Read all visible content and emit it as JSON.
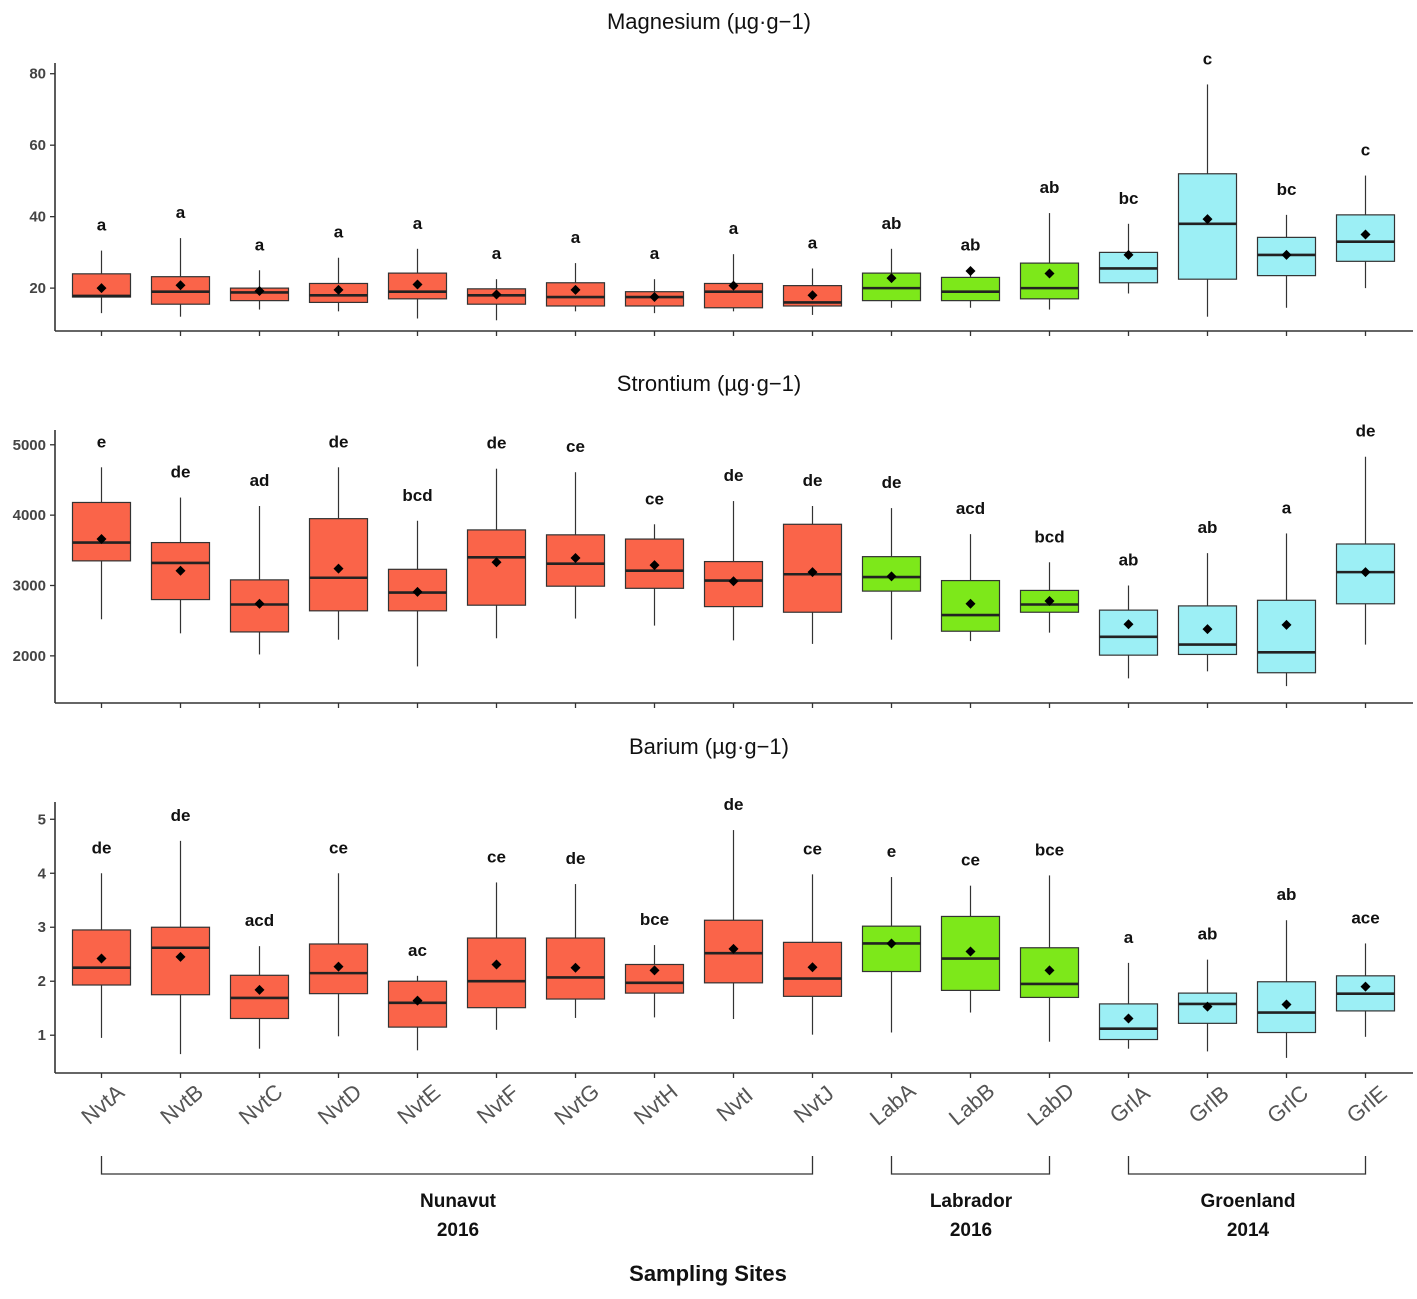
{
  "figure": {
    "xlabel": "Sampling Sites",
    "groups": [
      {
        "name": "Nunavut",
        "year": "2016",
        "from": 0,
        "to": 9
      },
      {
        "name": "Labrador",
        "year": "2016",
        "from": 10,
        "to": 12
      },
      {
        "name": "Groenland",
        "year": "2014",
        "from": 13,
        "to": 16
      }
    ]
  },
  "chart_data": [
    {
      "type": "boxplot",
      "title": "Magnesium  (µg·g−1)",
      "categories": [
        "NvtA",
        "NvtB",
        "NvtC",
        "NvtD",
        "NvtE",
        "NvtF",
        "NvtG",
        "NvtH",
        "NvtI",
        "NvtJ",
        "LabA",
        "LabB",
        "LabD",
        "GrlA",
        "GrlB",
        "GrlC",
        "GrlE"
      ],
      "colors": [
        "#fa6449",
        "#fa6449",
        "#fa6449",
        "#fa6449",
        "#fa6449",
        "#fa6449",
        "#fa6449",
        "#fa6449",
        "#fa6449",
        "#fa6449",
        "#7de81a",
        "#7de81a",
        "#7de81a",
        "#9ceff5",
        "#9ceff5",
        "#9ceff5",
        "#9ceff5"
      ],
      "ylim": [
        8,
        83
      ],
      "yticks": [
        "20",
        "40",
        "60",
        "80"
      ],
      "series": [
        {
          "name": "NvtA",
          "min": 13,
          "q1": 17.5,
          "median": 17.8,
          "q3": 24,
          "max": 30.5,
          "mean": 20,
          "letter": "a"
        },
        {
          "name": "NvtB",
          "min": 12,
          "q1": 15.5,
          "median": 19,
          "q3": 23.2,
          "max": 34,
          "mean": 20.8,
          "letter": "a"
        },
        {
          "name": "NvtC",
          "min": 14,
          "q1": 16.5,
          "median": 18.8,
          "q3": 20,
          "max": 25,
          "mean": 19.2,
          "letter": "a"
        },
        {
          "name": "NvtD",
          "min": 13.5,
          "q1": 16,
          "median": 18,
          "q3": 21.3,
          "max": 28.5,
          "mean": 19.5,
          "letter": "a"
        },
        {
          "name": "NvtE",
          "min": 11.5,
          "q1": 17,
          "median": 19,
          "q3": 24.2,
          "max": 31,
          "mean": 21,
          "letter": "a"
        },
        {
          "name": "NvtF",
          "min": 11,
          "q1": 15.5,
          "median": 18,
          "q3": 19.8,
          "max": 22.5,
          "mean": 18.2,
          "letter": "a"
        },
        {
          "name": "NvtG",
          "min": 13.5,
          "q1": 15,
          "median": 17.5,
          "q3": 21.5,
          "max": 27,
          "mean": 19.5,
          "letter": "a"
        },
        {
          "name": "NvtH",
          "min": 13,
          "q1": 15,
          "median": 17.5,
          "q3": 19,
          "max": 22.5,
          "mean": 17.5,
          "letter": "a"
        },
        {
          "name": "NvtI",
          "min": 13.5,
          "q1": 14.5,
          "median": 19,
          "q3": 21.3,
          "max": 29.5,
          "mean": 20.7,
          "letter": "a"
        },
        {
          "name": "NvtJ",
          "min": 12.5,
          "q1": 15,
          "median": 16,
          "q3": 20.7,
          "max": 25.5,
          "mean": 18,
          "letter": "a"
        },
        {
          "name": "LabA",
          "min": 14.5,
          "q1": 16.5,
          "median": 20,
          "q3": 24.2,
          "max": 31,
          "mean": 22.8,
          "letter": "ab"
        },
        {
          "name": "LabB",
          "min": 14.5,
          "q1": 16.5,
          "median": 19,
          "q3": 23,
          "max": 25,
          "mean": 24.8,
          "letter": "ab"
        },
        {
          "name": "LabD",
          "min": 14,
          "q1": 17,
          "median": 20,
          "q3": 27,
          "max": 41,
          "mean": 24.1,
          "letter": "ab"
        },
        {
          "name": "GrlA",
          "min": 18.5,
          "q1": 21.5,
          "median": 25.5,
          "q3": 30,
          "max": 38,
          "mean": 29.3,
          "letter": "bc"
        },
        {
          "name": "GrlB",
          "min": 12,
          "q1": 22.5,
          "median": 38,
          "q3": 52,
          "max": 77,
          "mean": 39.3,
          "letter": "c"
        },
        {
          "name": "GrlC",
          "min": 14.5,
          "q1": 23.5,
          "median": 29.3,
          "q3": 34.2,
          "max": 40.5,
          "mean": 29.3,
          "letter": "bc"
        },
        {
          "name": "GrlE",
          "min": 20,
          "q1": 27.5,
          "median": 33,
          "q3": 40.5,
          "max": 51.5,
          "mean": 35,
          "letter": "c"
        }
      ]
    },
    {
      "type": "boxplot",
      "title": "Strontium  (µg·g−1)",
      "categories": [
        "NvtA",
        "NvtB",
        "NvtC",
        "NvtD",
        "NvtE",
        "NvtF",
        "NvtG",
        "NvtH",
        "NvtI",
        "NvtJ",
        "LabA",
        "LabB",
        "LabD",
        "GrlA",
        "GrlB",
        "GrlC",
        "GrlE"
      ],
      "colors": [
        "#fa6449",
        "#fa6449",
        "#fa6449",
        "#fa6449",
        "#fa6449",
        "#fa6449",
        "#fa6449",
        "#fa6449",
        "#fa6449",
        "#fa6449",
        "#7de81a",
        "#7de81a",
        "#7de81a",
        "#9ceff5",
        "#9ceff5",
        "#9ceff5",
        "#9ceff5"
      ],
      "ylim": [
        1330,
        5210
      ],
      "yticks": [
        "2000",
        "3000",
        "4000",
        "5000"
      ],
      "series": [
        {
          "name": "NvtA",
          "min": 2520,
          "q1": 3350,
          "median": 3610,
          "q3": 4180,
          "max": 4680,
          "mean": 3660,
          "letter": "e"
        },
        {
          "name": "NvtB",
          "min": 2320,
          "q1": 2800,
          "median": 3320,
          "q3": 3610,
          "max": 4250,
          "mean": 3210,
          "letter": "de"
        },
        {
          "name": "NvtC",
          "min": 2020,
          "q1": 2340,
          "median": 2730,
          "q3": 3080,
          "max": 4130,
          "mean": 2740,
          "letter": "ad"
        },
        {
          "name": "NvtD",
          "min": 2230,
          "q1": 2640,
          "median": 3110,
          "q3": 3950,
          "max": 4680,
          "mean": 3240,
          "letter": "de"
        },
        {
          "name": "NvtE",
          "min": 1850,
          "q1": 2640,
          "median": 2900,
          "q3": 3230,
          "max": 3920,
          "mean": 2910,
          "letter": "bcd"
        },
        {
          "name": "NvtF",
          "min": 2250,
          "q1": 2720,
          "median": 3400,
          "q3": 3790,
          "max": 4660,
          "mean": 3330,
          "letter": "de"
        },
        {
          "name": "NvtG",
          "min": 2530,
          "q1": 2990,
          "median": 3310,
          "q3": 3720,
          "max": 4610,
          "mean": 3390,
          "letter": "ce"
        },
        {
          "name": "NvtH",
          "min": 2430,
          "q1": 2960,
          "median": 3210,
          "q3": 3660,
          "max": 3870,
          "mean": 3290,
          "letter": "ce"
        },
        {
          "name": "NvtI",
          "min": 2220,
          "q1": 2700,
          "median": 3070,
          "q3": 3340,
          "max": 4200,
          "mean": 3060,
          "letter": "de"
        },
        {
          "name": "NvtJ",
          "min": 2170,
          "q1": 2620,
          "median": 3160,
          "q3": 3870,
          "max": 4130,
          "mean": 3190,
          "letter": "de"
        },
        {
          "name": "LabA",
          "min": 2230,
          "q1": 2920,
          "median": 3120,
          "q3": 3410,
          "max": 4100,
          "mean": 3130,
          "letter": "de"
        },
        {
          "name": "LabB",
          "min": 2210,
          "q1": 2350,
          "median": 2580,
          "q3": 3070,
          "max": 3730,
          "mean": 2740,
          "letter": "acd"
        },
        {
          "name": "LabD",
          "min": 2330,
          "q1": 2620,
          "median": 2730,
          "q3": 2930,
          "max": 3330,
          "mean": 2780,
          "letter": "bcd"
        },
        {
          "name": "GrlA",
          "min": 1680,
          "q1": 2010,
          "median": 2270,
          "q3": 2650,
          "max": 3000,
          "mean": 2450,
          "letter": "ab"
        },
        {
          "name": "GrlB",
          "min": 1780,
          "q1": 2020,
          "median": 2160,
          "q3": 2710,
          "max": 3460,
          "mean": 2380,
          "letter": "ab"
        },
        {
          "name": "GrlC",
          "min": 1570,
          "q1": 1760,
          "median": 2050,
          "q3": 2790,
          "max": 3740,
          "mean": 2440,
          "letter": "a"
        },
        {
          "name": "GrlE",
          "min": 2160,
          "q1": 2740,
          "median": 3190,
          "q3": 3590,
          "max": 4830,
          "mean": 3190,
          "letter": "de"
        }
      ]
    },
    {
      "type": "boxplot",
      "title": "Barium  (µg·g−1)",
      "categories": [
        "NvtA",
        "NvtB",
        "NvtC",
        "NvtD",
        "NvtE",
        "NvtF",
        "NvtG",
        "NvtH",
        "NvtI",
        "NvtJ",
        "LabA",
        "LabB",
        "LabD",
        "GrlA",
        "GrlB",
        "GrlC",
        "GrlE"
      ],
      "colors": [
        "#fa6449",
        "#fa6449",
        "#fa6449",
        "#fa6449",
        "#fa6449",
        "#fa6449",
        "#fa6449",
        "#fa6449",
        "#fa6449",
        "#fa6449",
        "#7de81a",
        "#7de81a",
        "#7de81a",
        "#9ceff5",
        "#9ceff5",
        "#9ceff5",
        "#9ceff5"
      ],
      "ylim": [
        0.3,
        5.32
      ],
      "yticks": [
        "1",
        "2",
        "3",
        "4",
        "5"
      ],
      "series": [
        {
          "name": "NvtA",
          "min": 0.95,
          "q1": 1.93,
          "median": 2.25,
          "q3": 2.95,
          "max": 4.0,
          "mean": 2.42,
          "letter": "de"
        },
        {
          "name": "NvtB",
          "min": 0.65,
          "q1": 1.75,
          "median": 2.62,
          "q3": 3.0,
          "max": 4.6,
          "mean": 2.45,
          "letter": "de"
        },
        {
          "name": "NvtC",
          "min": 0.75,
          "q1": 1.31,
          "median": 1.69,
          "q3": 2.11,
          "max": 2.65,
          "mean": 1.84,
          "letter": "acd"
        },
        {
          "name": "NvtD",
          "min": 0.98,
          "q1": 1.77,
          "median": 2.15,
          "q3": 2.69,
          "max": 4.0,
          "mean": 2.27,
          "letter": "ce"
        },
        {
          "name": "NvtE",
          "min": 0.72,
          "q1": 1.15,
          "median": 1.6,
          "q3": 2.0,
          "max": 2.1,
          "mean": 1.64,
          "letter": "ac"
        },
        {
          "name": "NvtF",
          "min": 1.1,
          "q1": 1.51,
          "median": 2.0,
          "q3": 2.8,
          "max": 3.83,
          "mean": 2.31,
          "letter": "ce"
        },
        {
          "name": "NvtG",
          "min": 1.32,
          "q1": 1.67,
          "median": 2.07,
          "q3": 2.8,
          "max": 3.8,
          "mean": 2.25,
          "letter": "de"
        },
        {
          "name": "NvtH",
          "min": 1.33,
          "q1": 1.78,
          "median": 1.97,
          "q3": 2.31,
          "max": 2.67,
          "mean": 2.2,
          "letter": "bce"
        },
        {
          "name": "NvtI",
          "min": 1.3,
          "q1": 1.97,
          "median": 2.52,
          "q3": 3.13,
          "max": 4.8,
          "mean": 2.6,
          "letter": "de"
        },
        {
          "name": "NvtJ",
          "min": 1.01,
          "q1": 1.72,
          "median": 2.05,
          "q3": 2.72,
          "max": 3.98,
          "mean": 2.26,
          "letter": "ce"
        },
        {
          "name": "LabA",
          "min": 1.05,
          "q1": 2.18,
          "median": 2.7,
          "q3": 3.02,
          "max": 3.93,
          "mean": 2.7,
          "letter": "e"
        },
        {
          "name": "LabB",
          "min": 1.42,
          "q1": 1.83,
          "median": 2.42,
          "q3": 3.2,
          "max": 3.77,
          "mean": 2.55,
          "letter": "ce"
        },
        {
          "name": "LabD",
          "min": 0.88,
          "q1": 1.7,
          "median": 1.95,
          "q3": 2.62,
          "max": 3.96,
          "mean": 2.2,
          "letter": "bce"
        },
        {
          "name": "GrlA",
          "min": 0.75,
          "q1": 0.92,
          "median": 1.12,
          "q3": 1.58,
          "max": 2.34,
          "mean": 1.31,
          "letter": "a"
        },
        {
          "name": "GrlB",
          "min": 0.7,
          "q1": 1.22,
          "median": 1.58,
          "q3": 1.78,
          "max": 2.4,
          "mean": 1.53,
          "letter": "ab"
        },
        {
          "name": "GrlC",
          "min": 0.58,
          "q1": 1.05,
          "median": 1.42,
          "q3": 1.99,
          "max": 3.13,
          "mean": 1.57,
          "letter": "ab"
        },
        {
          "name": "GrlE",
          "min": 0.97,
          "q1": 1.45,
          "median": 1.77,
          "q3": 2.1,
          "max": 2.7,
          "mean": 1.9,
          "letter": "ace"
        }
      ]
    }
  ]
}
